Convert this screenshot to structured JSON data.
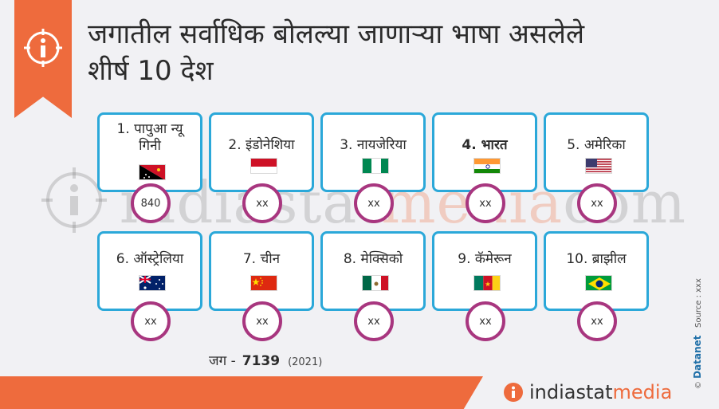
{
  "title": {
    "line1": "जगातील सर्वाधिक बोलल्या जाणाऱ्या भाषा असलेले",
    "line2": "शीर्ष 10 देश"
  },
  "watermark": {
    "part1": "indiastat",
    "part2": "media",
    "part3": "com"
  },
  "countries": [
    {
      "name": "1. पापुआ न्यू गिनी",
      "value": "840",
      "flag": "papua-new-guinea-flag"
    },
    {
      "name": "2. इंडोनेशिया",
      "value": "xx",
      "flag": "indonesia-flag"
    },
    {
      "name": "3. नायजेरिया",
      "value": "xx",
      "flag": "nigeria-flag"
    },
    {
      "name": "4. भारत",
      "value": "xx",
      "flag": "india-flag"
    },
    {
      "name": "5. अमेरिका",
      "value": "xx",
      "flag": "usa-flag"
    },
    {
      "name": "6. ऑस्ट्रेलिया",
      "value": "xx",
      "flag": "australia-flag"
    },
    {
      "name": "7. चीन",
      "value": "xx",
      "flag": "china-flag"
    },
    {
      "name": "8. मेक्सिको",
      "value": "xx",
      "flag": "mexico-flag"
    },
    {
      "name": "9. कॅमेरून",
      "value": "xx",
      "flag": "cameroon-flag"
    },
    {
      "name": "10. ब्राझील",
      "value": "xx",
      "flag": "brazil-flag"
    }
  ],
  "footer": {
    "label": "जग -",
    "value": "7139",
    "year": "(2021)"
  },
  "brand": {
    "part1": "indiastat",
    "part2": "media"
  },
  "side": {
    "copyright": "©",
    "datanet": "Datanet",
    "source": "Source : xxx"
  },
  "colors": {
    "accent": "#ee6b3d",
    "card_border": "#2ba8d9",
    "badge_ring": "#a8367f"
  }
}
